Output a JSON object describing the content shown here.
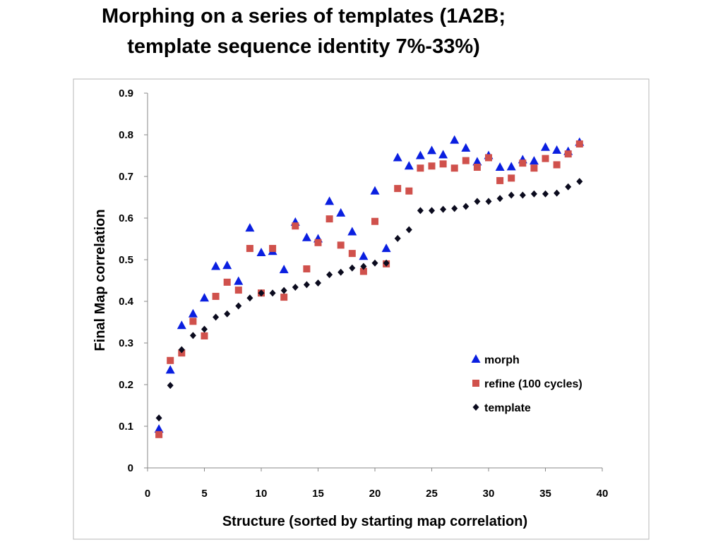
{
  "page": {
    "title": "Morphing on a series of templates (1A2B; template sequence identity 7%-33%)"
  },
  "chart_data": {
    "type": "scatter",
    "title": "Morphing on a series of templates (1A2B; template sequence identity 7%-33%)",
    "xlabel": "Structure (sorted by starting map correlation)",
    "ylabel": "Final Map correlation",
    "xlim": [
      0,
      40
    ],
    "ylim": [
      0,
      0.9
    ],
    "x_ticks": [
      0,
      5,
      10,
      15,
      20,
      25,
      30,
      35,
      40
    ],
    "y_ticks": [
      0,
      0.1,
      0.2,
      0.3,
      0.4,
      0.5,
      0.6,
      0.7,
      0.8,
      0.9
    ],
    "x_tick_labels": [
      "0",
      "5",
      "10",
      "15",
      "20",
      "25",
      "30",
      "35",
      "40"
    ],
    "y_tick_labels": [
      "0",
      "0.1",
      "0.2",
      "0.3",
      "0.4",
      "0.5",
      "0.6",
      "0.7",
      "0.8",
      "0.9"
    ],
    "grid": false,
    "legend_position": "right",
    "x": [
      1,
      2,
      3,
      4,
      5,
      6,
      7,
      8,
      9,
      10,
      11,
      12,
      13,
      14,
      15,
      16,
      17,
      18,
      19,
      20,
      21,
      22,
      23,
      24,
      25,
      26,
      27,
      28,
      29,
      30,
      31,
      32,
      33,
      34,
      35,
      36,
      37,
      38
    ],
    "series": [
      {
        "name": "morph",
        "marker": "triangle",
        "color": "#0a1fe0",
        "values": [
          0.093,
          0.235,
          0.342,
          0.37,
          0.408,
          0.484,
          0.486,
          0.448,
          0.576,
          0.517,
          0.52,
          0.476,
          0.59,
          0.553,
          0.55,
          0.64,
          0.612,
          0.567,
          0.508,
          0.665,
          0.527,
          0.745,
          0.725,
          0.75,
          0.762,
          0.752,
          0.787,
          0.768,
          0.735,
          0.75,
          0.722,
          0.723,
          0.74,
          0.737,
          0.77,
          0.763,
          0.76,
          0.782
        ]
      },
      {
        "name": "refine (100 cycles)",
        "marker": "square",
        "color": "#d0514c",
        "values": [
          0.08,
          0.258,
          0.276,
          0.352,
          0.317,
          0.412,
          0.446,
          0.427,
          0.527,
          0.42,
          0.527,
          0.41,
          0.581,
          0.478,
          0.541,
          0.598,
          0.535,
          0.515,
          0.472,
          0.592,
          0.49,
          0.671,
          0.665,
          0.72,
          0.725,
          0.73,
          0.72,
          0.738,
          0.722,
          0.745,
          0.69,
          0.696,
          0.732,
          0.72,
          0.743,
          0.728,
          0.754,
          0.778
        ]
      },
      {
        "name": "template",
        "marker": "diamond",
        "color": "#0b0b1e",
        "values": [
          0.12,
          0.198,
          0.284,
          0.318,
          0.333,
          0.362,
          0.37,
          0.389,
          0.408,
          0.42,
          0.42,
          0.426,
          0.434,
          0.44,
          0.444,
          0.464,
          0.47,
          0.48,
          0.484,
          0.492,
          0.492,
          0.551,
          0.572,
          0.618,
          0.618,
          0.621,
          0.623,
          0.628,
          0.64,
          0.64,
          0.647,
          0.655,
          0.655,
          0.658,
          0.658,
          0.66,
          0.675,
          0.688
        ]
      }
    ]
  }
}
